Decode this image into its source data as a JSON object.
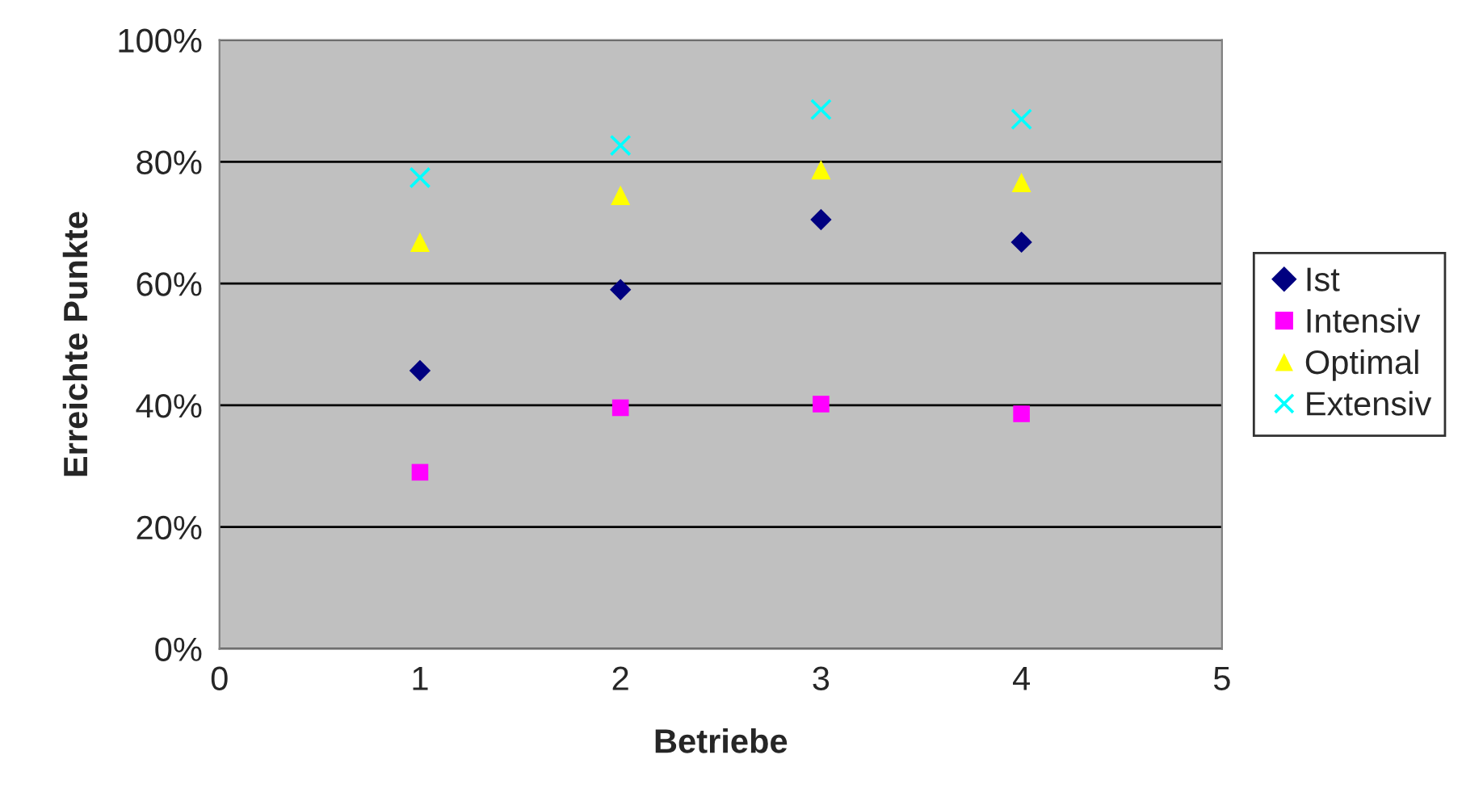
{
  "chart_data": {
    "type": "scatter",
    "xlabel": "Betriebe",
    "ylabel": "Erreichte Punkte",
    "x": [
      1,
      2,
      3,
      4
    ],
    "series": [
      {
        "name": "Ist",
        "color": "#000080",
        "marker": "diamond",
        "values": [
          45.7,
          59.0,
          70.5,
          66.8
        ]
      },
      {
        "name": "Intensiv",
        "color": "#ff00ff",
        "marker": "square",
        "values": [
          29.0,
          39.6,
          40.2,
          38.6
        ]
      },
      {
        "name": "Optimal",
        "color": "#ffff00",
        "marker": "triangle",
        "values": [
          66.8,
          74.5,
          78.7,
          76.6
        ]
      },
      {
        "name": "Extensiv",
        "color": "#00ffff",
        "marker": "cross",
        "values": [
          77.4,
          82.7,
          88.6,
          87.0
        ]
      }
    ],
    "xlim": [
      0,
      5
    ],
    "xticks": [
      0,
      1,
      2,
      3,
      4,
      5
    ],
    "ylim": [
      0,
      100
    ],
    "yticks": [
      {
        "value": 0,
        "label": "0%"
      },
      {
        "value": 20,
        "label": "20%"
      },
      {
        "value": 40,
        "label": "40%"
      },
      {
        "value": 60,
        "label": "60%"
      },
      {
        "value": 80,
        "label": "80%"
      },
      {
        "value": 100,
        "label": "100%"
      }
    ],
    "grid": "y",
    "legend": "right"
  }
}
